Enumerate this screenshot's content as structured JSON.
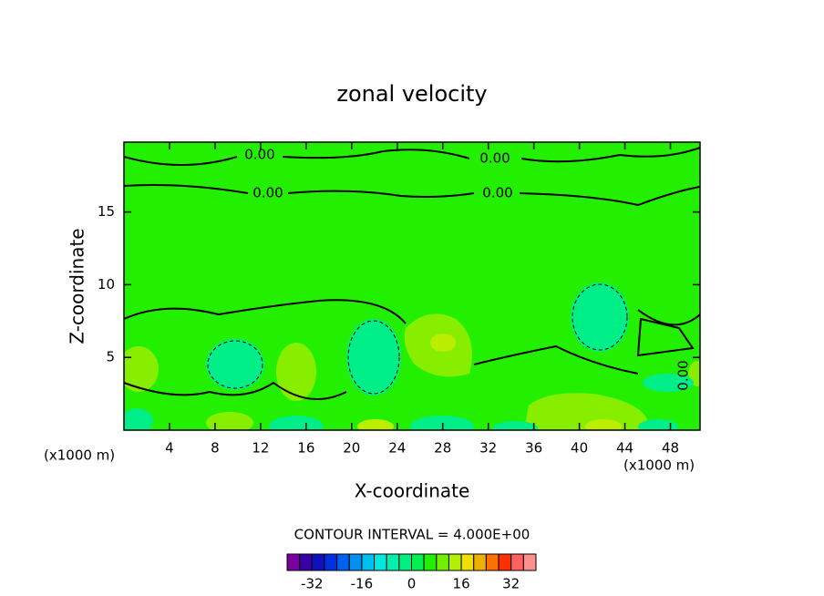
{
  "chart_data": {
    "type": "contour",
    "title": "zonal velocity",
    "x_label": "X-coordinate",
    "y_label": "Z-coordinate",
    "x_unit": "(x1000 m)",
    "y_unit": "(x1000 m)",
    "xlim": [
      0,
      50.6
    ],
    "ylim": [
      0,
      19.8
    ],
    "xticks": [
      4,
      8,
      12,
      16,
      20,
      24,
      28,
      32,
      36,
      40,
      44,
      48
    ],
    "yticks": [
      5,
      10,
      15
    ],
    "contour_labels": [
      "0.00",
      "0.00",
      "0.00",
      "0.00",
      "0.00"
    ],
    "contour_interval": "CONTOUR INTERVAL = 4.000E+00",
    "colorbar": {
      "levels": [
        -40,
        -36,
        -32,
        -28,
        -24,
        -20,
        -16,
        -12,
        -8,
        -4,
        0,
        4,
        8,
        12,
        16,
        20,
        24,
        28,
        32,
        36,
        40
      ],
      "colors": [
        "#7a00a0",
        "#3a00a8",
        "#1010c0",
        "#0030e0",
        "#0060f0",
        "#0090f0",
        "#00c0f0",
        "#00e8e0",
        "#00f0b0",
        "#00f080",
        "#00f050",
        "#22f000",
        "#70f000",
        "#b0f000",
        "#f0e000",
        "#f0b000",
        "#ff7000",
        "#ff3000",
        "#ff6060",
        "#ff9090"
      ],
      "ticks": [
        -32,
        -16,
        0,
        16,
        32
      ]
    }
  }
}
